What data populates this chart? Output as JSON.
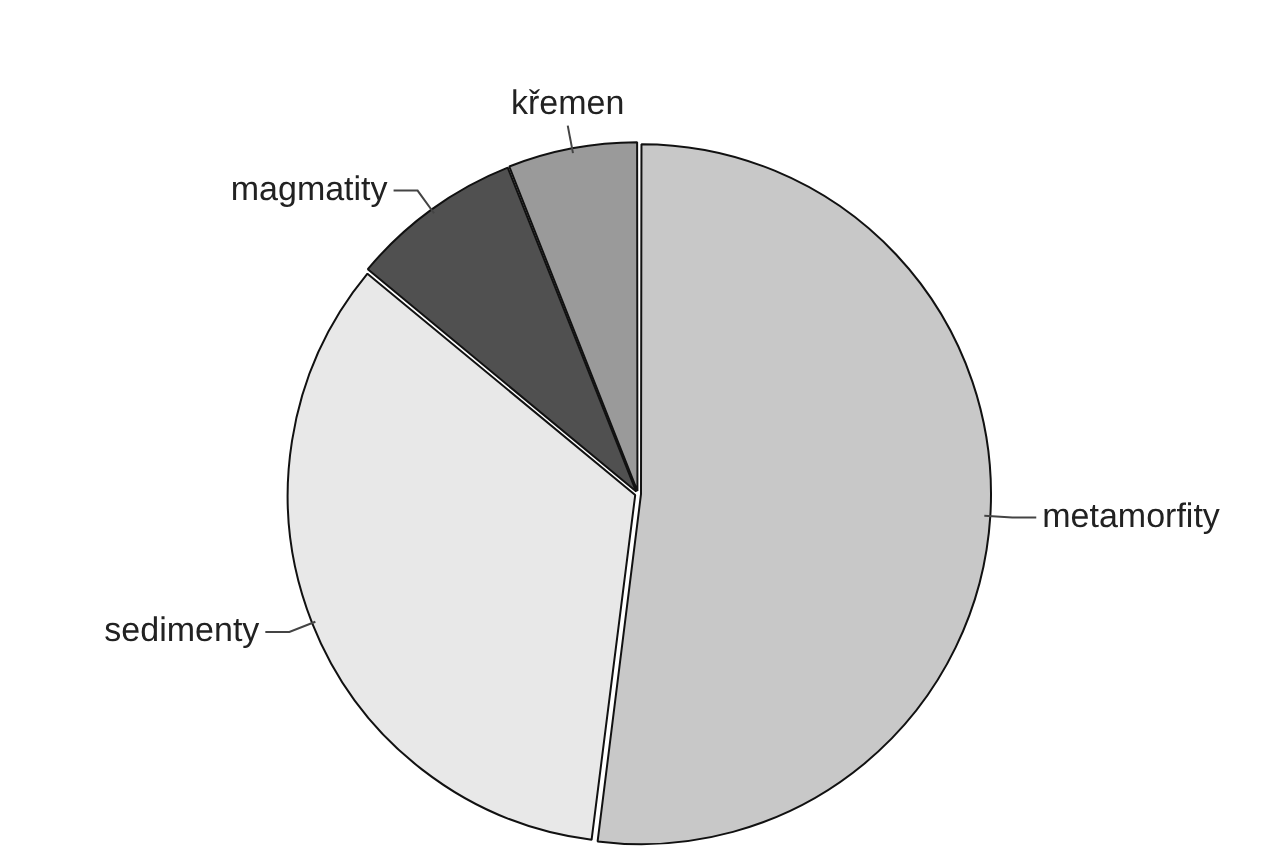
{
  "chart_data": {
    "type": "pie",
    "categories": [
      "metamorfity",
      "sedimenty",
      "magmatity",
      "křemen"
    ],
    "values": [
      52,
      34,
      8,
      6
    ],
    "colors": [
      "#c8c8c8",
      "#e8e8e8",
      "#505050",
      "#9a9a9a"
    ],
    "legend": false
  }
}
